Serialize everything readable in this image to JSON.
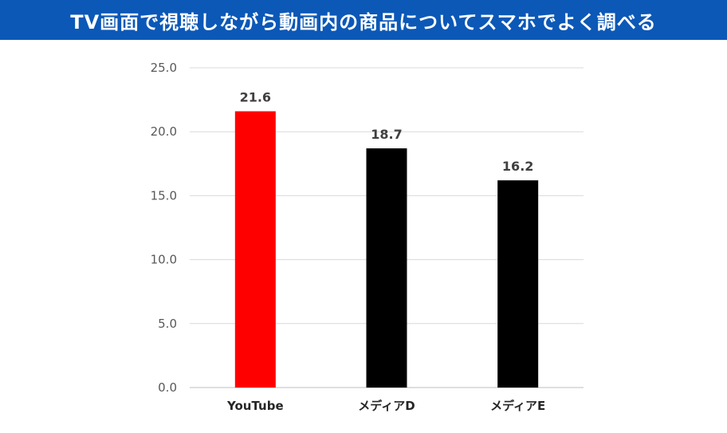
{
  "title": "TV画面で視聴しながら動画内の商品についてスマホでよく調べる",
  "colors": {
    "title_background": "#0b58b7",
    "title_text": "#ffffff",
    "gridline": "#d9d9d9",
    "axis": "#bfbfbf"
  },
  "chart_data": {
    "type": "bar",
    "categories": [
      "YouTube",
      "メディアD",
      "メディアE"
    ],
    "values": [
      21.6,
      18.7,
      16.2
    ],
    "data_labels": [
      "21.6",
      "18.7",
      "16.2"
    ],
    "bar_colors": [
      "#ff0000",
      "#000000",
      "#000000"
    ],
    "ylim": [
      0,
      25
    ],
    "yticks": [
      "0.0",
      "5.0",
      "10.0",
      "15.0",
      "20.0",
      "25.0"
    ],
    "ytick_values": [
      0,
      5,
      10,
      15,
      20,
      25
    ],
    "grid": true,
    "legend": "none"
  }
}
